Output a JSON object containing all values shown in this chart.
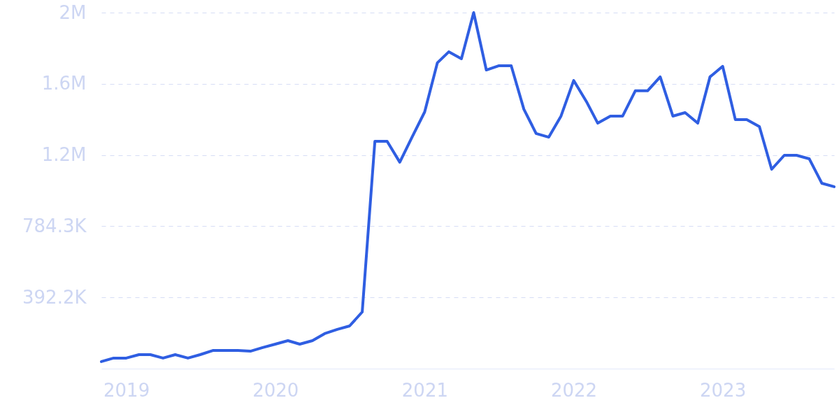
{
  "chart_data": {
    "type": "line",
    "x": [
      "2018-11",
      "2018-12",
      "2019-01",
      "2019-02",
      "2019-03",
      "2019-04",
      "2019-05",
      "2019-06",
      "2019-07",
      "2019-08",
      "2019-09",
      "2019-10",
      "2019-11",
      "2019-12",
      "2020-01",
      "2020-02",
      "2020-03",
      "2020-04",
      "2020-05",
      "2020-06",
      "2020-07",
      "2020-08",
      "2020-09",
      "2020-10",
      "2020-11",
      "2020-12",
      "2021-01",
      "2021-02",
      "2021-03",
      "2021-04",
      "2021-05",
      "2021-06",
      "2021-07",
      "2021-08",
      "2021-09",
      "2021-10",
      "2021-11",
      "2021-12",
      "2022-01",
      "2022-02",
      "2022-03",
      "2022-04",
      "2022-05",
      "2022-06",
      "2022-07",
      "2022-08",
      "2022-09",
      "2022-10",
      "2022-11",
      "2022-12",
      "2023-01",
      "2023-02",
      "2023-03",
      "2023-04",
      "2023-05",
      "2023-06",
      "2023-07",
      "2023-08",
      "2023-09",
      "2023-10"
    ],
    "series": [
      {
        "color": "#2f5ee2",
        "values": [
          39000,
          58000,
          58000,
          77000,
          77000,
          58000,
          77000,
          58000,
          77000,
          100000,
          100000,
          100000,
          96000,
          116000,
          135000,
          154000,
          135000,
          154000,
          193000,
          216000,
          235000,
          312000,
          1252000,
          1252000,
          1137000,
          1275000,
          1414000,
          1684000,
          1745000,
          1707000,
          1961000,
          1645000,
          1668000,
          1668000,
          1429000,
          1295000,
          1275000,
          1391000,
          1587000,
          1472000,
          1352000,
          1391000,
          1391000,
          1530000,
          1530000,
          1607000,
          1391000,
          1410000,
          1352000,
          1607000,
          1665000,
          1372000,
          1372000,
          1333000,
          1098000,
          1175000,
          1175000,
          1156000,
          1021000,
          1002000
        ]
      }
    ],
    "xlim": [
      "2018-11",
      "2023-10"
    ],
    "xticks": [
      {
        "value": "2019",
        "label": "2019"
      },
      {
        "value": "2020",
        "label": "2020"
      },
      {
        "value": "2021",
        "label": "2021"
      },
      {
        "value": "2022",
        "label": "2022"
      },
      {
        "value": "2023",
        "label": "2023"
      }
    ],
    "ylim": [
      0,
      1961000
    ],
    "yticks": [
      {
        "value": 392200,
        "label": "392.2K"
      },
      {
        "value": 784300,
        "label": "784.3K"
      },
      {
        "value": 1176500,
        "label": "1.2M"
      },
      {
        "value": 1568600,
        "label": "1.6M"
      },
      {
        "value": 1961000,
        "label": "2M"
      }
    ],
    "grid": "y",
    "marker": "none",
    "line_style": "solid"
  }
}
